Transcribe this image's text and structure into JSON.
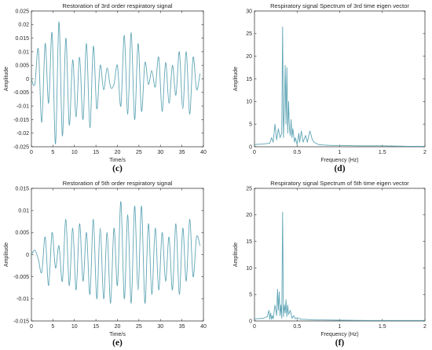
{
  "line_color": "#5fa5b5",
  "panels": [
    {
      "id": "c",
      "caption": "(c)",
      "title": "Restoration of 3rd order respiratory signal",
      "xlabel": "Time/s",
      "ylabel": "Amplitude",
      "xticks": [
        "0",
        "5",
        "10",
        "15",
        "20",
        "25",
        "30",
        "35",
        "40"
      ],
      "yticks": [
        "-0.025",
        "-0.02",
        "-0.015",
        "-0.01",
        "-0.005",
        "0",
        "0.005",
        "0.01",
        "0.015",
        "0.02",
        "0.025"
      ]
    },
    {
      "id": "d",
      "caption": "(d)",
      "title": "Respiratory signal Spectrum of 3rd time eigen vector",
      "xlabel": "Frequency (Hz)",
      "ylabel": "Amplitude",
      "xticks": [
        "0",
        "0.5",
        "1",
        "1.5",
        "2"
      ],
      "yticks": [
        "0",
        "5",
        "10",
        "15",
        "20",
        "25",
        "30"
      ]
    },
    {
      "id": "e",
      "caption": "(e)",
      "title": "Restoration of 5th order respiratory signal",
      "xlabel": "Time/s",
      "ylabel": "Amplitude",
      "xticks": [
        "0",
        "5",
        "10",
        "15",
        "20",
        "25",
        "30",
        "35",
        "40"
      ],
      "yticks": [
        "-0.015",
        "-0.01",
        "-0.005",
        "0",
        "0.005",
        "0.01",
        "0.015"
      ]
    },
    {
      "id": "f",
      "caption": "(f)",
      "title": "Respiratory signal Spectrum of 5th time eigen vector",
      "xlabel": "Frequency (Hz)",
      "ylabel": "Amplitude",
      "xticks": [
        "0",
        "0.5",
        "1",
        "1.5",
        "2"
      ],
      "yticks": [
        "0",
        "5",
        "10",
        "15",
        "20",
        "25"
      ]
    }
  ],
  "chart_data": [
    {
      "type": "line",
      "title": "Restoration of 3rd order respiratory signal",
      "xlabel": "Time/s",
      "ylabel": "Amplitude",
      "xlim": [
        0,
        40
      ],
      "ylim": [
        -0.025,
        0.025
      ],
      "series": [
        {
          "x": [
            0,
            0.8,
            1.6,
            2.4,
            3.2,
            4.0,
            4.8,
            5.6,
            6.4,
            7.2,
            8.0,
            8.8,
            9.6,
            10.4,
            11.2,
            12.0,
            12.8,
            13.6,
            14.4,
            15.2,
            16.0,
            16.8,
            17.6,
            18.4,
            19.2,
            20.0,
            20.8,
            21.6,
            22.4,
            23.2,
            24.0,
            24.8,
            25.6,
            26.4,
            27.2,
            28.0,
            28.8,
            29.6,
            30.4,
            31.2,
            32.0,
            32.8,
            33.6,
            34.4,
            35.2,
            36.0,
            36.8,
            37.6,
            38.4,
            39.2
          ],
          "y": [
            0.0,
            -0.002,
            0.011,
            -0.016,
            0.013,
            -0.009,
            0.017,
            -0.024,
            0.021,
            -0.021,
            0.015,
            -0.017,
            0.007,
            -0.014,
            0.008,
            -0.015,
            0.013,
            -0.018,
            0.012,
            -0.011,
            0.005,
            -0.004,
            0.004,
            -0.003,
            -0.002,
            0.005,
            -0.01,
            0.016,
            -0.013,
            0.017,
            -0.015,
            0.013,
            -0.012,
            0.006,
            -0.002,
            0.003,
            -0.003,
            0.008,
            -0.012,
            0.006,
            -0.009,
            0.005,
            -0.006,
            0.01,
            -0.011,
            0.01,
            -0.013,
            0.008,
            -0.004,
            0.002
          ]
        }
      ]
    },
    {
      "type": "line",
      "title": "Respiratory signal Spectrum of 3rd time eigen vector",
      "xlabel": "Frequency (Hz)",
      "ylabel": "Amplitude",
      "xlim": [
        0,
        2
      ],
      "ylim": [
        0,
        30
      ],
      "series": [
        {
          "x": [
            0,
            0.1,
            0.18,
            0.2,
            0.22,
            0.24,
            0.26,
            0.28,
            0.3,
            0.32,
            0.33,
            0.34,
            0.35,
            0.36,
            0.37,
            0.38,
            0.39,
            0.4,
            0.41,
            0.42,
            0.43,
            0.44,
            0.45,
            0.47,
            0.48,
            0.5,
            0.52,
            0.53,
            0.55,
            0.57,
            0.6,
            0.62,
            0.65,
            0.68,
            0.7,
            0.75,
            0.8,
            0.9,
            1.0,
            1.2,
            1.5,
            1.8,
            2.0
          ],
          "y": [
            0.5,
            0.6,
            0.8,
            2.0,
            1.0,
            5.0,
            1.5,
            4.0,
            2.0,
            3.0,
            26.5,
            2.0,
            8.0,
            18.0,
            5.0,
            17.5,
            3.0,
            10.0,
            4.0,
            2.5,
            6.0,
            2.0,
            4.0,
            1.0,
            2.0,
            0.5,
            3.0,
            1.0,
            3.5,
            1.0,
            2.5,
            1.0,
            3.5,
            1.5,
            1.0,
            0.5,
            0.4,
            0.3,
            0.3,
            0.2,
            0.2,
            0.1,
            0.1
          ]
        }
      ]
    },
    {
      "type": "line",
      "title": "Restoration of 5th order respiratory signal",
      "xlabel": "Time/s",
      "ylabel": "Amplitude",
      "xlim": [
        0,
        40
      ],
      "ylim": [
        -0.015,
        0.015
      ],
      "series": [
        {
          "x": [
            0,
            0.8,
            1.6,
            2.4,
            3.2,
            4.0,
            4.8,
            5.6,
            6.4,
            7.2,
            8.0,
            8.8,
            9.6,
            10.4,
            11.2,
            12.0,
            12.8,
            13.6,
            14.4,
            15.2,
            16.0,
            16.8,
            17.6,
            18.4,
            19.2,
            20.0,
            20.8,
            21.6,
            22.4,
            23.2,
            24.0,
            24.8,
            25.6,
            26.4,
            27.2,
            28.0,
            28.8,
            29.6,
            30.4,
            31.2,
            32.0,
            32.8,
            33.6,
            34.4,
            35.2,
            36.0,
            36.8,
            37.6,
            38.4,
            39.2
          ],
          "y": [
            0.0,
            0.001,
            -0.001,
            -0.004,
            0.004,
            -0.007,
            0.005,
            -0.003,
            0.002,
            -0.006,
            0.008,
            -0.007,
            0.006,
            -0.008,
            0.007,
            -0.006,
            0.005,
            -0.009,
            0.008,
            -0.01,
            0.006,
            -0.01,
            0.005,
            -0.011,
            0.006,
            -0.007,
            0.012,
            -0.01,
            0.009,
            -0.011,
            0.011,
            -0.008,
            0.011,
            -0.011,
            0.007,
            -0.009,
            0.006,
            -0.008,
            0.005,
            -0.006,
            0.004,
            -0.008,
            0.007,
            -0.009,
            0.006,
            -0.006,
            0.008,
            -0.005,
            0.004,
            0.002
          ]
        }
      ]
    },
    {
      "type": "line",
      "title": "Respiratory signal Spectrum of 5th time eigen vector",
      "xlabel": "Frequency (Hz)",
      "ylabel": "Amplitude",
      "xlim": [
        0,
        2
      ],
      "ylim": [
        0,
        25
      ],
      "series": [
        {
          "x": [
            0,
            0.1,
            0.15,
            0.17,
            0.18,
            0.19,
            0.2,
            0.21,
            0.22,
            0.24,
            0.26,
            0.27,
            0.28,
            0.29,
            0.3,
            0.31,
            0.32,
            0.33,
            0.34,
            0.35,
            0.36,
            0.37,
            0.38,
            0.39,
            0.4,
            0.42,
            0.44,
            0.46,
            0.48,
            0.5,
            0.55,
            0.6,
            0.7,
            0.8,
            1.0,
            1.3,
            1.6,
            2.0
          ],
          "y": [
            0.4,
            0.5,
            0.8,
            2.0,
            0.3,
            1.5,
            0.3,
            1.0,
            0.4,
            3.0,
            1.0,
            6.0,
            2.0,
            5.5,
            1.0,
            3.0,
            0.5,
            20.5,
            0.8,
            3.0,
            1.5,
            4.0,
            0.8,
            3.0,
            1.2,
            2.0,
            0.5,
            1.0,
            0.4,
            0.6,
            0.3,
            0.3,
            0.2,
            0.2,
            0.15,
            0.1,
            0.1,
            0.1
          ]
        }
      ]
    }
  ]
}
